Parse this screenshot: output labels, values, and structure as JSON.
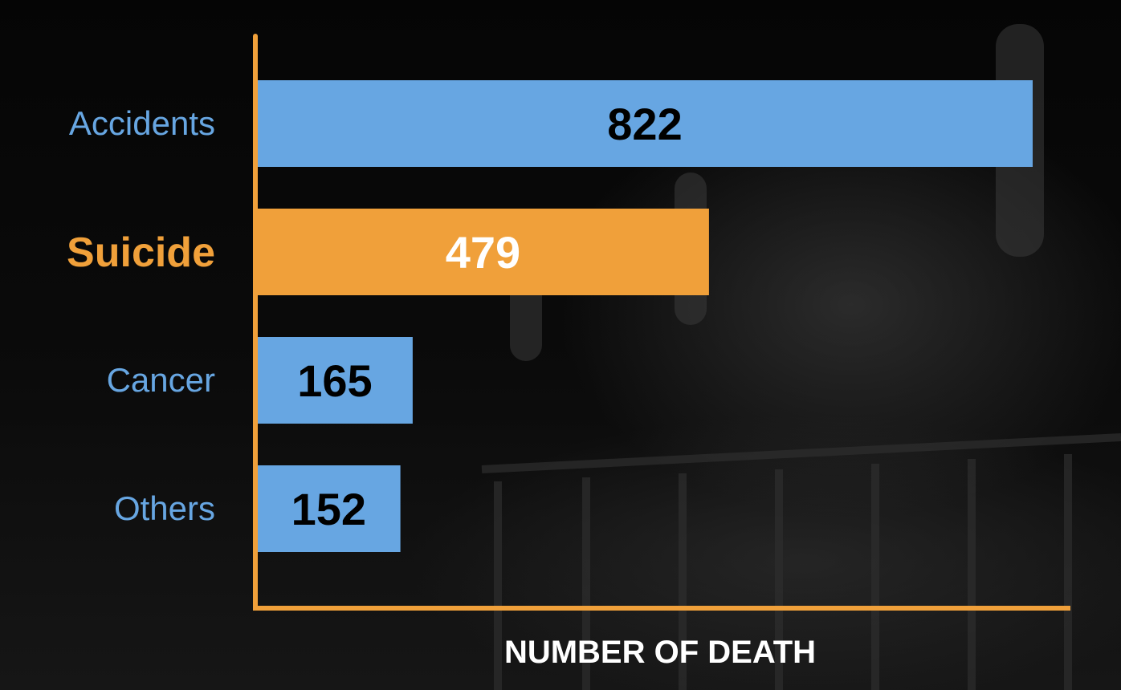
{
  "chart_data": {
    "type": "bar",
    "orientation": "horizontal",
    "categories": [
      "Accidents",
      "Suicide",
      "Cancer",
      "Others"
    ],
    "values": [
      822,
      479,
      165,
      152
    ],
    "highlight": "Suicide",
    "xlabel": "NUMBER OF DEATH",
    "ylabel": "",
    "xlim": [
      0,
      822
    ],
    "grid": false,
    "legend": "none"
  },
  "colors": {
    "bar": "#67a6e2",
    "highlight": "#f0a03a",
    "axis": "#f0a03a",
    "category_label": "#67a6e2",
    "highlight_label": "#f0a03a",
    "value_label": "#000000",
    "highlight_value_label": "#ffffff",
    "axis_title": "#ffffff"
  },
  "background": {
    "description_icon": "dark-railing-photo"
  }
}
